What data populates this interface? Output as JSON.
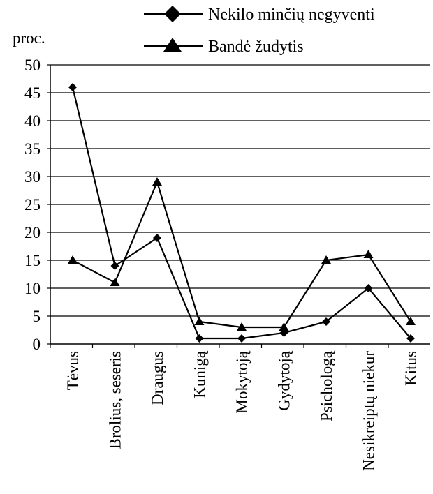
{
  "chart_data": {
    "type": "line",
    "ylabel": "proc.",
    "ylim": [
      0,
      50
    ],
    "yticks": [
      0,
      5,
      10,
      15,
      20,
      25,
      30,
      35,
      40,
      45,
      50
    ],
    "grid": true,
    "legend_position": "top",
    "categories": [
      "Tėvus",
      "Brolius, seseris",
      "Draugus",
      "Kunigą",
      "Mokytoją",
      "Gydytoją",
      "Psichologą",
      "Nesikreiptų niekur",
      "Kitus"
    ],
    "series": [
      {
        "name": "Nekilo minčių negyventi",
        "marker": "diamond",
        "values": [
          46,
          14,
          19,
          1,
          1,
          2,
          4,
          10,
          1
        ]
      },
      {
        "name": "Bandė žudytis",
        "marker": "triangle",
        "values": [
          15,
          11,
          29,
          4,
          3,
          3,
          15,
          16,
          4
        ]
      }
    ]
  }
}
